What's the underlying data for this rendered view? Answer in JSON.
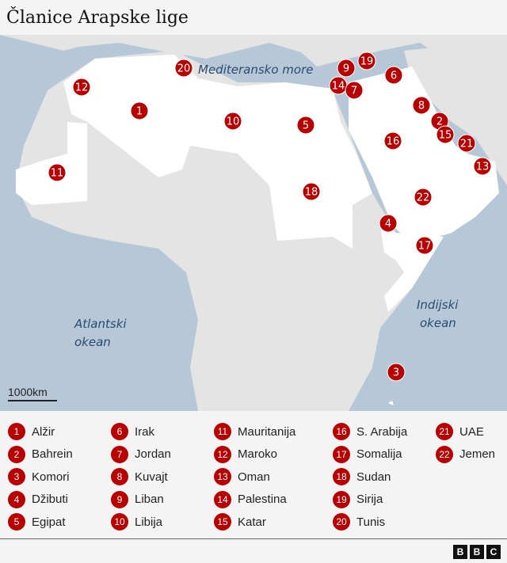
{
  "title": "Članice Arapske lige",
  "colors": {
    "sea": "#b6c8d8",
    "land": "#e4e4e4",
    "member": "#ffffff",
    "marker": "#b80000"
  },
  "map": {
    "sea_labels": {
      "mediterranean": "Mediteransko more",
      "atlantic_1": "Atlantski",
      "atlantic_2": "okean",
      "indian_1": "Indijski",
      "indian_2": "okean"
    },
    "scale": "1000km",
    "markers": [
      {
        "n": "20"
      },
      {
        "n": "9"
      },
      {
        "n": "19"
      },
      {
        "n": "6"
      },
      {
        "n": "12"
      },
      {
        "n": "14"
      },
      {
        "n": "7"
      },
      {
        "n": "1"
      },
      {
        "n": "8"
      },
      {
        "n": "10"
      },
      {
        "n": "2"
      },
      {
        "n": "5"
      },
      {
        "n": "16"
      },
      {
        "n": "15"
      },
      {
        "n": "21"
      },
      {
        "n": "13"
      },
      {
        "n": "11"
      },
      {
        "n": "18"
      },
      {
        "n": "22"
      },
      {
        "n": "4"
      },
      {
        "n": "17"
      },
      {
        "n": "3"
      }
    ]
  },
  "legend": [
    {
      "n": "1",
      "name": "Alžir"
    },
    {
      "n": "2",
      "name": "Bahrein"
    },
    {
      "n": "3",
      "name": "Komori"
    },
    {
      "n": "4",
      "name": "Džibuti"
    },
    {
      "n": "5",
      "name": "Egipat"
    },
    {
      "n": "6",
      "name": "Irak"
    },
    {
      "n": "7",
      "name": "Jordan"
    },
    {
      "n": "8",
      "name": "Kuvajt"
    },
    {
      "n": "9",
      "name": "Liban"
    },
    {
      "n": "10",
      "name": "Libija"
    },
    {
      "n": "11",
      "name": "Mauritanija"
    },
    {
      "n": "12",
      "name": "Maroko"
    },
    {
      "n": "13",
      "name": "Oman"
    },
    {
      "n": "14",
      "name": "Palestina"
    },
    {
      "n": "15",
      "name": "Katar"
    },
    {
      "n": "16",
      "name": "S. Arabija"
    },
    {
      "n": "17",
      "name": "Somalija"
    },
    {
      "n": "18",
      "name": "Sudan"
    },
    {
      "n": "19",
      "name": "Sirija"
    },
    {
      "n": "20",
      "name": "Tunis"
    },
    {
      "n": "21",
      "name": "UAE"
    },
    {
      "n": "22",
      "name": "Jemen"
    }
  ],
  "logo": "BBC"
}
